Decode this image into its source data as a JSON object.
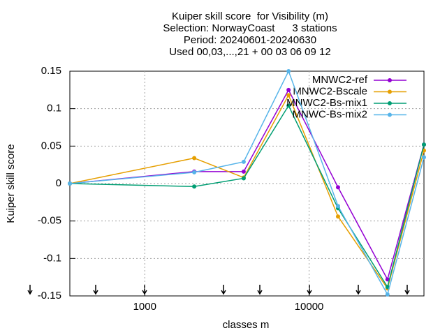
{
  "chart_data": {
    "type": "line",
    "title": [
      "Kuiper skill score  for Visibility (m)",
      "Selection: NorwayCoast      3 stations",
      "Period: 20240601-20240630",
      "Used 00,03,...,21 + 00 03 06 09 12"
    ],
    "x_label": "classes m",
    "y_label": "Kuiper skill score",
    "x": [
      350,
      2000,
      4000,
      7500,
      15000,
      30000,
      50000
    ],
    "xscale": "log",
    "xlim": [
      350,
      50000
    ],
    "xticks": [
      1000,
      10000
    ],
    "ylim": [
      -0.15,
      0.15
    ],
    "yticks": [
      0.15,
      0.1,
      0.05,
      0,
      -0.05,
      -0.1,
      -0.15
    ],
    "grid": true,
    "legend": "top-right",
    "series": [
      {
        "name": "MNWC2-ref",
        "color": "#9400d3",
        "values": [
          0,
          0.016,
          0.016,
          0.125,
          -0.005,
          -0.128,
          0.052
        ]
      },
      {
        "name": "MNWC2-Bscale",
        "color": "#e69f00",
        "values": [
          0,
          0.034,
          0.008,
          0.118,
          -0.044,
          -0.14,
          0.044
        ]
      },
      {
        "name": "MNWC2-Bs-mix1",
        "color": "#009e73",
        "values": [
          0,
          -0.004,
          0.007,
          0.104,
          -0.033,
          -0.138,
          0.052
        ]
      },
      {
        "name": "MNWC-Bs-mix2",
        "color": "#56b4e9",
        "values": [
          0,
          0.015,
          0.029,
          0.15,
          -0.03,
          -0.148,
          0.035
        ]
      }
    ]
  }
}
